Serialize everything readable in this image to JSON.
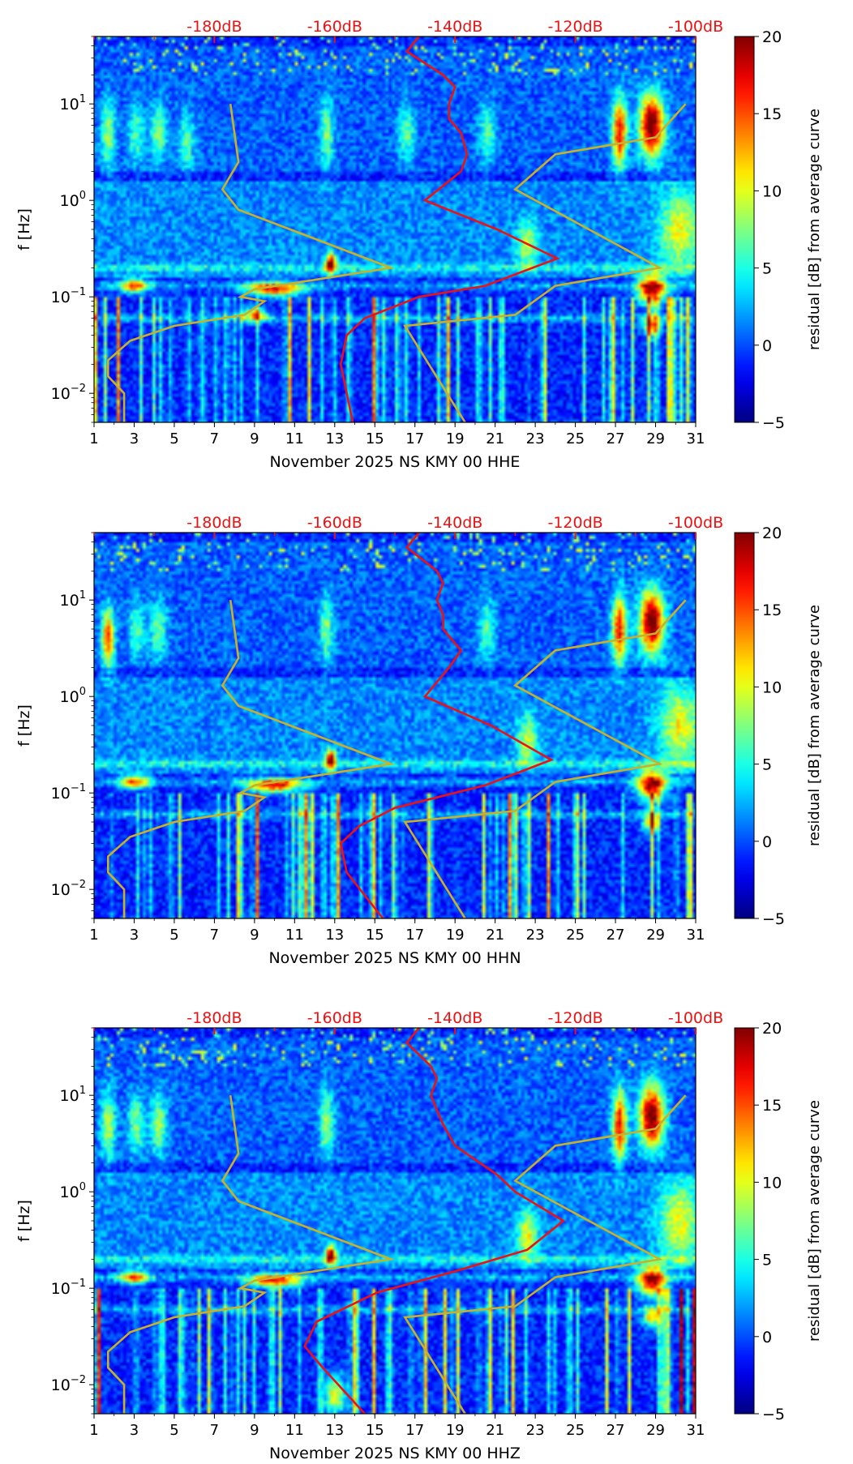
{
  "chart_data": [
    {
      "type": "heatmap",
      "channel": "HHE",
      "xlabel": "November 2025 NS KMY 00 HHE",
      "ylabel": "f [Hz]",
      "xlim": [
        1,
        31
      ],
      "ylim_hz": [
        0.005,
        50
      ],
      "yscale": "log",
      "x_ticks": [
        "1",
        "3",
        "5",
        "7",
        "9",
        "11",
        "13",
        "15",
        "17",
        "19",
        "21",
        "23",
        "25",
        "27",
        "29",
        "31"
      ],
      "y_ticks": [
        "10^-2",
        "10^-1",
        "10^0",
        "10^1"
      ],
      "top_ticks": [
        "-180dB",
        "-160dB",
        "-140dB",
        "-120dB",
        "-100dB"
      ],
      "top_axis_range_db": [
        -200,
        -100
      ],
      "colorbar": {
        "label": "residual [dB] from average curve",
        "min": -5,
        "max": 20,
        "ticks": [
          "20",
          "15",
          "10",
          "5",
          "0",
          "-5"
        ],
        "colormap": "jet"
      },
      "hotspots": [
        {
          "day": 1.7,
          "f": 5,
          "amp": 8,
          "wd": 0.35,
          "wf": 0.35
        },
        {
          "day": 3.1,
          "f": 5,
          "amp": 6,
          "wd": 0.4,
          "wf": 0.3
        },
        {
          "day": 4.2,
          "f": 5,
          "amp": 7,
          "wd": 0.4,
          "wf": 0.3
        },
        {
          "day": 5.6,
          "f": 4,
          "amp": 6,
          "wd": 0.4,
          "wf": 0.3
        },
        {
          "day": 12.6,
          "f": 5,
          "amp": 7,
          "wd": 0.35,
          "wf": 0.35
        },
        {
          "day": 16.6,
          "f": 5,
          "amp": 6,
          "wd": 0.4,
          "wf": 0.3
        },
        {
          "day": 20.6,
          "f": 5,
          "amp": 6,
          "wd": 0.4,
          "wf": 0.3
        },
        {
          "day": 22.6,
          "f": 0.35,
          "amp": 8,
          "wd": 0.5,
          "wf": 0.25
        },
        {
          "day": 27.2,
          "f": 5,
          "amp": 17,
          "wd": 0.35,
          "wf": 0.35
        },
        {
          "day": 28.8,
          "f": 6,
          "amp": 21,
          "wd": 0.6,
          "wf": 0.32
        },
        {
          "day": 28.8,
          "f": 0.12,
          "amp": 20,
          "wd": 0.7,
          "wf": 0.15
        },
        {
          "day": 28.8,
          "f": 0.05,
          "amp": 14,
          "wd": 0.4,
          "wf": 0.1
        },
        {
          "day": 12.8,
          "f": 0.22,
          "amp": 19,
          "wd": 0.25,
          "wf": 0.1
        },
        {
          "day": 10.0,
          "f": 0.12,
          "amp": 17,
          "wd": 1.3,
          "wf": 0.07
        },
        {
          "day": 3.0,
          "f": 0.13,
          "amp": 14,
          "wd": 0.7,
          "wf": 0.07
        },
        {
          "day": 9.0,
          "f": 0.065,
          "amp": 13,
          "wd": 0.6,
          "wf": 0.07
        },
        {
          "day": 30.2,
          "f": 0.5,
          "amp": 9,
          "wd": 1.0,
          "wf": 0.4
        }
      ],
      "red_curve": {
        "db": [
          -146,
          -148,
          -142,
          -140,
          -141,
          -141,
          -139,
          -138,
          -139,
          -145,
          -133,
          -123,
          -135,
          -146,
          -155,
          -158,
          -159,
          -157
        ],
        "f": [
          50,
          35,
          20,
          15,
          10,
          7,
          5,
          3,
          2,
          1,
          0.5,
          0.25,
          0.13,
          0.1,
          0.06,
          0.04,
          0.02,
          0.005
        ]
      },
      "yellow_curves": [
        {
          "day": [
            7.8,
            8.2,
            7.4,
            8.2,
            12.0,
            15.8,
            9.0,
            8.3,
            9.5,
            8.5,
            5.0,
            2.8,
            1.7,
            1.7,
            2.5,
            2.5
          ],
          "f": [
            10,
            2.5,
            1.3,
            0.8,
            0.4,
            0.2,
            0.12,
            0.1,
            0.09,
            0.065,
            0.05,
            0.035,
            0.022,
            0.015,
            0.01,
            0.005
          ]
        },
        {
          "day": [
            30.5,
            29.0,
            24.0,
            22.0,
            29.2,
            24.0,
            22.0,
            16.5,
            19.5
          ],
          "f": [
            10,
            4.5,
            3.0,
            1.3,
            0.2,
            0.13,
            0.065,
            0.05,
            0.005
          ]
        }
      ]
    },
    {
      "type": "heatmap",
      "channel": "HHN",
      "xlabel": "November 2025 NS KMY 00 HHN",
      "ylabel": "f [Hz]",
      "xlim": [
        1,
        31
      ],
      "ylim_hz": [
        0.005,
        50
      ],
      "yscale": "log",
      "x_ticks": [
        "1",
        "3",
        "5",
        "7",
        "9",
        "11",
        "13",
        "15",
        "17",
        "19",
        "21",
        "23",
        "25",
        "27",
        "29",
        "31"
      ],
      "y_ticks": [
        "10^-2",
        "10^-1",
        "10^0",
        "10^1"
      ],
      "top_ticks": [
        "-180dB",
        "-160dB",
        "-140dB",
        "-120dB",
        "-100dB"
      ],
      "top_axis_range_db": [
        -200,
        -100
      ],
      "colorbar": {
        "label": "residual [dB] from average curve",
        "min": -5,
        "max": 20,
        "ticks": [
          "20",
          "15",
          "10",
          "5",
          "0",
          "-5"
        ],
        "colormap": "jet"
      },
      "hotspots": [
        {
          "day": 1.7,
          "f": 4,
          "amp": 15,
          "wd": 0.3,
          "wf": 0.3
        },
        {
          "day": 3.1,
          "f": 5,
          "amp": 6,
          "wd": 0.4,
          "wf": 0.3
        },
        {
          "day": 4.2,
          "f": 5,
          "amp": 7,
          "wd": 0.4,
          "wf": 0.3
        },
        {
          "day": 12.6,
          "f": 5,
          "amp": 7,
          "wd": 0.35,
          "wf": 0.35
        },
        {
          "day": 20.6,
          "f": 5,
          "amp": 6,
          "wd": 0.4,
          "wf": 0.3
        },
        {
          "day": 22.6,
          "f": 0.35,
          "amp": 8,
          "wd": 0.5,
          "wf": 0.25
        },
        {
          "day": 27.2,
          "f": 5,
          "amp": 17,
          "wd": 0.35,
          "wf": 0.35
        },
        {
          "day": 28.8,
          "f": 6,
          "amp": 21,
          "wd": 0.6,
          "wf": 0.32
        },
        {
          "day": 28.8,
          "f": 0.12,
          "amp": 20,
          "wd": 0.7,
          "wf": 0.15
        },
        {
          "day": 28.8,
          "f": 0.05,
          "amp": 14,
          "wd": 0.4,
          "wf": 0.1
        },
        {
          "day": 12.8,
          "f": 0.22,
          "amp": 19,
          "wd": 0.25,
          "wf": 0.1
        },
        {
          "day": 10.0,
          "f": 0.12,
          "amp": 17,
          "wd": 1.3,
          "wf": 0.07
        },
        {
          "day": 3.0,
          "f": 0.13,
          "amp": 14,
          "wd": 0.7,
          "wf": 0.07
        },
        {
          "day": 30.2,
          "f": 0.5,
          "amp": 9,
          "wd": 1.0,
          "wf": 0.4
        }
      ],
      "red_curve": {
        "db": [
          -146,
          -148,
          -143,
          -142,
          -143,
          -142,
          -142,
          -139,
          -141,
          -145,
          -134,
          -124,
          -135,
          -150,
          -156,
          -159,
          -158,
          -152
        ],
        "f": [
          50,
          35,
          20,
          15,
          10,
          7,
          5,
          3,
          2,
          1,
          0.5,
          0.22,
          0.12,
          0.07,
          0.045,
          0.03,
          0.015,
          0.005
        ]
      },
      "yellow_curves": [
        {
          "day": [
            7.8,
            8.2,
            7.4,
            8.2,
            12.0,
            15.8,
            9.0,
            8.3,
            9.5,
            8.5,
            5.0,
            2.8,
            1.7,
            1.7,
            2.5,
            2.5
          ],
          "f": [
            10,
            2.5,
            1.3,
            0.8,
            0.4,
            0.2,
            0.12,
            0.1,
            0.09,
            0.065,
            0.05,
            0.035,
            0.022,
            0.015,
            0.01,
            0.005
          ]
        },
        {
          "day": [
            30.5,
            29.0,
            24.0,
            22.0,
            29.2,
            24.0,
            22.0,
            16.5,
            19.5
          ],
          "f": [
            10,
            4.5,
            3.0,
            1.3,
            0.2,
            0.13,
            0.065,
            0.05,
            0.005
          ]
        }
      ]
    },
    {
      "type": "heatmap",
      "channel": "HHZ",
      "xlabel": "November 2025 NS KMY 00 HHZ",
      "ylabel": "f [Hz]",
      "xlim": [
        1,
        31
      ],
      "ylim_hz": [
        0.005,
        50
      ],
      "yscale": "log",
      "x_ticks": [
        "1",
        "3",
        "5",
        "7",
        "9",
        "11",
        "13",
        "15",
        "17",
        "19",
        "21",
        "23",
        "25",
        "27",
        "29",
        "31"
      ],
      "y_ticks": [
        "10^-2",
        "10^-1",
        "10^0",
        "10^1"
      ],
      "top_ticks": [
        "-180dB",
        "-160dB",
        "-140dB",
        "-120dB",
        "-100dB"
      ],
      "top_axis_range_db": [
        -200,
        -100
      ],
      "colorbar": {
        "label": "residual [dB] from average curve",
        "min": -5,
        "max": 20,
        "ticks": [
          "20",
          "15",
          "10",
          "5",
          "0",
          "-5"
        ],
        "colormap": "jet"
      },
      "hotspots": [
        {
          "day": 1.7,
          "f": 5,
          "amp": 9,
          "wd": 0.35,
          "wf": 0.35
        },
        {
          "day": 3.1,
          "f": 5,
          "amp": 7,
          "wd": 0.4,
          "wf": 0.3
        },
        {
          "day": 4.2,
          "f": 5,
          "amp": 8,
          "wd": 0.4,
          "wf": 0.3
        },
        {
          "day": 12.6,
          "f": 5,
          "amp": 8,
          "wd": 0.35,
          "wf": 0.35
        },
        {
          "day": 22.6,
          "f": 0.35,
          "amp": 9,
          "wd": 0.5,
          "wf": 0.25
        },
        {
          "day": 27.2,
          "f": 5,
          "amp": 17,
          "wd": 0.35,
          "wf": 0.35
        },
        {
          "day": 28.8,
          "f": 6,
          "amp": 21,
          "wd": 0.6,
          "wf": 0.32
        },
        {
          "day": 28.8,
          "f": 0.12,
          "amp": 20,
          "wd": 0.7,
          "wf": 0.15
        },
        {
          "day": 28.8,
          "f": 0.05,
          "amp": 13,
          "wd": 0.4,
          "wf": 0.1
        },
        {
          "day": 12.8,
          "f": 0.22,
          "amp": 19,
          "wd": 0.25,
          "wf": 0.1
        },
        {
          "day": 10.0,
          "f": 0.12,
          "amp": 17,
          "wd": 1.3,
          "wf": 0.07
        },
        {
          "day": 3.0,
          "f": 0.13,
          "amp": 14,
          "wd": 0.7,
          "wf": 0.07
        },
        {
          "day": 13.0,
          "f": 0.008,
          "amp": 12,
          "wd": 0.5,
          "wf": 0.2
        },
        {
          "day": 30.2,
          "f": 0.5,
          "amp": 9,
          "wd": 1.0,
          "wf": 0.4
        }
      ],
      "red_curve": {
        "db": [
          -146,
          -148,
          -144,
          -143,
          -144,
          -143,
          -142,
          -140,
          -133,
          -130,
          -122,
          -128,
          -140,
          -153,
          -163,
          -165,
          -162,
          -155
        ],
        "f": [
          50,
          35,
          20,
          15,
          10,
          7,
          5,
          3,
          1.5,
          1,
          0.5,
          0.25,
          0.15,
          0.09,
          0.045,
          0.025,
          0.015,
          0.005
        ]
      },
      "yellow_curves": [
        {
          "day": [
            7.8,
            8.2,
            7.4,
            8.2,
            12.0,
            15.8,
            9.0,
            8.3,
            9.5,
            8.5,
            5.0,
            2.8,
            1.7,
            1.7,
            2.5,
            2.5
          ],
          "f": [
            10,
            2.5,
            1.3,
            0.8,
            0.4,
            0.2,
            0.12,
            0.1,
            0.09,
            0.065,
            0.05,
            0.035,
            0.022,
            0.015,
            0.01,
            0.005
          ]
        },
        {
          "day": [
            30.5,
            29.0,
            24.0,
            22.0,
            29.2,
            24.0,
            22.0,
            16.5,
            19.5
          ],
          "f": [
            10,
            4.5,
            3.0,
            1.3,
            0.2,
            0.13,
            0.065,
            0.05,
            0.005
          ]
        }
      ]
    }
  ],
  "colors": {
    "red_curve": "#ee1111",
    "yellow_curve": "#c8b02a",
    "top_tick_labels": "#ee1111"
  }
}
